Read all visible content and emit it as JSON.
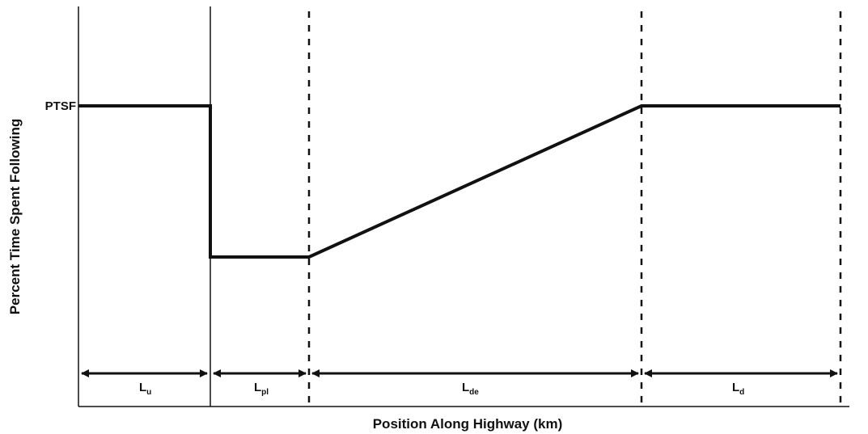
{
  "diagram": {
    "y_axis_label": "Percent Time Spent Following",
    "x_axis_label": "Position Along Highway (km)",
    "level_label": "PTSF",
    "segments": [
      {
        "main": "L",
        "sub": "u"
      },
      {
        "main": "L",
        "sub": "pl"
      },
      {
        "main": "L",
        "sub": "de"
      },
      {
        "main": "L",
        "sub": "d"
      }
    ],
    "colors": {
      "line": "#111111",
      "background": "#ffffff"
    }
  }
}
